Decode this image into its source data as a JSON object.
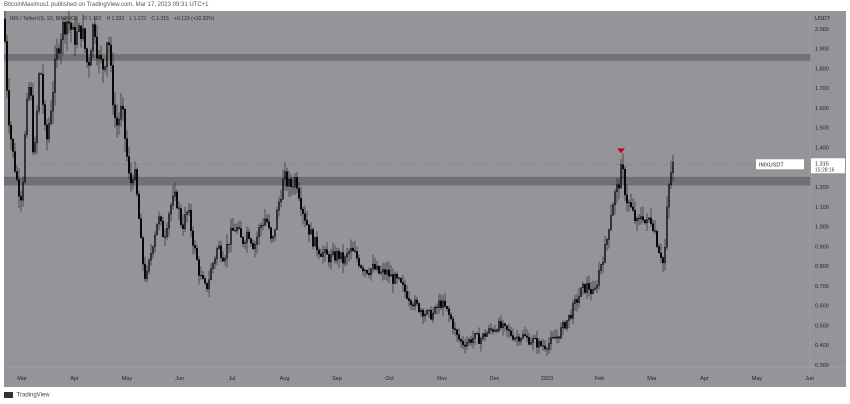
{
  "publisher": "BitcoinMaximus1 published on TradingView.com, Mar 17, 2023 09:31 UTC+1",
  "legend": {
    "pair": "IMX / TetherUS, 1D, BINANCE",
    "open": "O 1.193",
    "high": "H 1.333",
    "low": "L 1.172",
    "close": "C 1.315",
    "change": "+0.123 (+10.32%)"
  },
  "price_tag": {
    "symbol": "IMXUSDT",
    "price": "1.315",
    "countdown": "15:28:16"
  },
  "branding": "TradingView",
  "colors": {
    "background": "#939599",
    "candles": "#000000",
    "zone": "#6d6f73",
    "marker": "#d0021b"
  },
  "chart_data": {
    "type": "candlestick",
    "title": "IMX / TetherUS, 1D, BINANCE",
    "ylabel": "USDT",
    "ylim": [
      0.29,
      2.09
    ],
    "xlabels": [
      "Mar",
      "Apr",
      "May",
      "Jun",
      "Jul",
      "Aug",
      "Sep",
      "Oct",
      "Nov",
      "Dec",
      "2023",
      "Feb",
      "Mar",
      "Apr",
      "May",
      "Jun"
    ],
    "yticks": [
      "0.300",
      "0.400",
      "0.500",
      "0.600",
      "0.700",
      "0.800",
      "0.900",
      "1.000",
      "1.100",
      "1.200",
      "1.300",
      "1.400",
      "1.500",
      "1.600",
      "1.700",
      "1.800",
      "1.900",
      "2.000"
    ],
    "resistance_zones": [
      [
        1.84,
        1.87
      ],
      [
        1.21,
        1.25
      ]
    ],
    "marker": {
      "type": "bearish-arrow",
      "x": "Feb 2023",
      "y": 1.37
    },
    "path_points": [
      [
        0,
        2.05
      ],
      [
        4,
        1.6
      ],
      [
        8,
        1.4
      ],
      [
        14,
        1.2
      ],
      [
        18,
        1.15
      ],
      [
        22,
        1.55
      ],
      [
        26,
        1.75
      ],
      [
        30,
        1.3
      ],
      [
        36,
        1.85
      ],
      [
        42,
        1.4
      ],
      [
        48,
        1.65
      ],
      [
        52,
        1.85
      ],
      [
        58,
        2.0
      ],
      [
        64,
        2.05
      ],
      [
        70,
        1.95
      ],
      [
        78,
        2.0
      ],
      [
        84,
        1.8
      ],
      [
        90,
        2.05
      ],
      [
        94,
        1.85
      ],
      [
        100,
        1.8
      ],
      [
        104,
        2.0
      ],
      [
        108,
        1.7
      ],
      [
        112,
        1.5
      ],
      [
        118,
        1.6
      ],
      [
        122,
        1.4
      ],
      [
        126,
        1.2
      ],
      [
        130,
        1.3
      ],
      [
        134,
        1.1
      ],
      [
        138,
        0.85
      ],
      [
        142,
        0.72
      ],
      [
        148,
        0.9
      ],
      [
        154,
        1.05
      ],
      [
        160,
        0.95
      ],
      [
        166,
        1.1
      ],
      [
        172,
        1.15
      ],
      [
        178,
        1.0
      ],
      [
        184,
        1.08
      ],
      [
        190,
        0.9
      ],
      [
        196,
        0.75
      ],
      [
        202,
        0.68
      ],
      [
        208,
        0.8
      ],
      [
        214,
        0.9
      ],
      [
        220,
        0.85
      ],
      [
        226,
        0.95
      ],
      [
        232,
        1.0
      ],
      [
        238,
        0.92
      ],
      [
        244,
        0.98
      ],
      [
        250,
        0.9
      ],
      [
        256,
        1.0
      ],
      [
        262,
        1.05
      ],
      [
        268,
        0.9
      ],
      [
        274,
        1.1
      ],
      [
        280,
        1.25
      ],
      [
        286,
        1.2
      ],
      [
        292,
        1.25
      ],
      [
        298,
        1.1
      ],
      [
        304,
        1.0
      ],
      [
        310,
        0.92
      ],
      [
        316,
        0.88
      ],
      [
        322,
        0.85
      ],
      [
        328,
        0.84
      ],
      [
        334,
        0.86
      ],
      [
        340,
        0.82
      ],
      [
        346,
        0.88
      ],
      [
        352,
        0.85
      ],
      [
        358,
        0.8
      ],
      [
        364,
        0.78
      ],
      [
        370,
        0.79
      ],
      [
        376,
        0.76
      ],
      [
        382,
        0.77
      ],
      [
        388,
        0.74
      ],
      [
        394,
        0.72
      ],
      [
        400,
        0.68
      ],
      [
        406,
        0.64
      ],
      [
        412,
        0.6
      ],
      [
        418,
        0.58
      ],
      [
        424,
        0.55
      ],
      [
        430,
        0.56
      ],
      [
        436,
        0.62
      ],
      [
        442,
        0.58
      ],
      [
        448,
        0.52
      ],
      [
        452,
        0.45
      ],
      [
        458,
        0.41
      ],
      [
        464,
        0.42
      ],
      [
        470,
        0.44
      ],
      [
        476,
        0.43
      ],
      [
        482,
        0.46
      ],
      [
        488,
        0.48
      ],
      [
        494,
        0.5
      ],
      [
        500,
        0.48
      ],
      [
        506,
        0.46
      ],
      [
        512,
        0.44
      ],
      [
        518,
        0.45
      ],
      [
        524,
        0.43
      ],
      [
        530,
        0.42
      ],
      [
        536,
        0.4
      ],
      [
        542,
        0.4
      ],
      [
        548,
        0.42
      ],
      [
        554,
        0.45
      ],
      [
        560,
        0.5
      ],
      [
        566,
        0.55
      ],
      [
        572,
        0.62
      ],
      [
        578,
        0.68
      ],
      [
        584,
        0.7
      ],
      [
        590,
        0.65
      ],
      [
        596,
        0.8
      ],
      [
        602,
        0.9
      ],
      [
        606,
        1.05
      ],
      [
        610,
        1.15
      ],
      [
        614,
        1.2
      ],
      [
        618,
        1.3
      ],
      [
        622,
        1.15
      ],
      [
        626,
        1.1
      ],
      [
        630,
        1.05
      ],
      [
        634,
        1.0
      ],
      [
        638,
        1.08
      ],
      [
        642,
        1.0
      ],
      [
        646,
        1.05
      ],
      [
        650,
        1.0
      ],
      [
        654,
        0.9
      ],
      [
        658,
        0.85
      ],
      [
        660,
        0.78
      ],
      [
        662,
        1.0
      ],
      [
        664,
        1.15
      ],
      [
        666,
        1.25
      ],
      [
        668,
        1.3
      ],
      [
        670,
        1.32
      ]
    ],
    "xlabel": ""
  }
}
